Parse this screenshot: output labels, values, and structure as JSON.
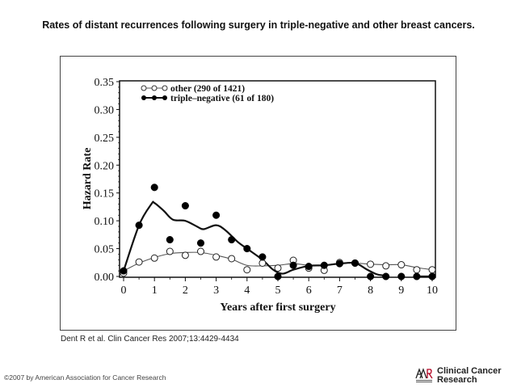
{
  "page": {
    "title": "Rates of distant recurrences following  surgery in triple-negative and other breast cancers.",
    "citation": "Dent R et al. Clin Cancer Res 2007;13:4429-4434",
    "copyright": "©2007 by American Association for Cancer Research",
    "logo": {
      "mark": "AACR",
      "line1": "Clinical Cancer",
      "line2": "Research",
      "icon": "aacr-logo-icon"
    }
  },
  "chart_data": {
    "type": "scatter",
    "title": "",
    "xlabel": "Years after first surgery",
    "ylabel": "Hazard Rate",
    "xlim": [
      0,
      10
    ],
    "ylim": [
      0,
      0.35
    ],
    "xticks": [
      0,
      1,
      2,
      3,
      4,
      5,
      6,
      7,
      8,
      9,
      10
    ],
    "xtick_labels": [
      "0",
      "1",
      "2",
      "3",
      "4",
      "5",
      "6",
      "7",
      "8",
      "9",
      "10"
    ],
    "yticks": [
      0,
      0.05,
      0.1,
      0.15,
      0.2,
      0.25,
      0.3,
      0.35
    ],
    "ytick_labels": [
      "0.00",
      "0.05",
      "0.10",
      "0.15",
      "0.20",
      "0.25",
      "0.30",
      "0.35"
    ],
    "grid": false,
    "legend_position": "top-left",
    "series": [
      {
        "name": "other (290 of 1421)",
        "marker": "open-circle",
        "line": "thin",
        "x": [
          0,
          0.5,
          1,
          1.5,
          2,
          2.5,
          3,
          3.5,
          4,
          4.5,
          5,
          5.5,
          6,
          6.5,
          7,
          7.5,
          8,
          8.5,
          9,
          9.5,
          10
        ],
        "values": [
          0.006,
          0.026,
          0.033,
          0.045,
          0.038,
          0.045,
          0.035,
          0.032,
          0.012,
          0.024,
          0.015,
          0.029,
          0.015,
          0.011,
          0.025,
          0.024,
          0.022,
          0.019,
          0.021,
          0.012,
          0.012
        ],
        "smooth_x": [
          0,
          0.5,
          1,
          1.5,
          2,
          2.5,
          3,
          3.5,
          4,
          4.5,
          5,
          5.5,
          6,
          6.5,
          7,
          7.5,
          8,
          8.5,
          9,
          9.5,
          10
        ],
        "smooth_y": [
          0.01,
          0.024,
          0.034,
          0.041,
          0.043,
          0.043,
          0.038,
          0.031,
          0.02,
          0.019,
          0.02,
          0.023,
          0.02,
          0.02,
          0.024,
          0.024,
          0.022,
          0.021,
          0.021,
          0.016,
          0.012
        ]
      },
      {
        "name": "triple-negative (61 of 180)",
        "marker": "filled-circle",
        "line": "thick",
        "x": [
          0,
          0.5,
          1,
          1.5,
          2,
          2.5,
          3,
          3.5,
          4,
          4.5,
          5,
          5.5,
          6,
          6.5,
          7,
          7.5,
          8,
          8.5,
          9,
          9.5,
          10
        ],
        "values": [
          0.01,
          0.092,
          0.16,
          0.066,
          0.127,
          0.06,
          0.11,
          0.066,
          0.05,
          0.035,
          0.0,
          0.02,
          0.018,
          0.02,
          0.023,
          0.024,
          0.0,
          0.0,
          0.0,
          0.0,
          0.0
        ],
        "smooth_x": [
          0,
          0.5,
          0.9,
          1.0,
          1.3,
          1.6,
          2.0,
          2.4,
          2.6,
          3.0,
          3.3,
          3.7,
          4.0,
          4.5,
          4.85,
          5.15,
          5.5,
          6.0,
          6.5,
          7.0,
          7.5,
          7.9,
          8.2,
          8.4
        ],
        "smooth_y": [
          0.01,
          0.092,
          0.13,
          0.132,
          0.118,
          0.102,
          0.1,
          0.089,
          0.085,
          0.092,
          0.083,
          0.062,
          0.05,
          0.03,
          0.012,
          0.005,
          0.012,
          0.019,
          0.02,
          0.023,
          0.024,
          0.012,
          0.004,
          0.002
        ],
        "smooth_tail_x": [
          9.5,
          10
        ],
        "smooth_tail_y": [
          0.0,
          0.0
        ]
      }
    ]
  }
}
